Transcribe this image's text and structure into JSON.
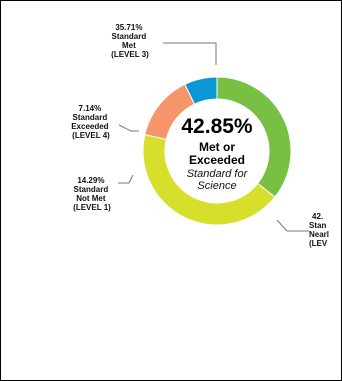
{
  "chart_data": {
    "type": "pie",
    "center": {
      "percent": "42.85%",
      "line1": "Met or",
      "line2": "Exceeded",
      "line3": "Standard for",
      "line4": "Science"
    },
    "slices": [
      {
        "value": 35.71,
        "color": "#77c043",
        "labels": [
          "35.71%",
          "Standard",
          "Met",
          "(LEVEL 3)"
        ]
      },
      {
        "value": 42.86,
        "color": "#d6e02a",
        "labels": [
          "42.",
          "Stan",
          "Nearl",
          "(LEV"
        ]
      },
      {
        "value": 14.29,
        "color": "#f7956a",
        "labels": [
          "14.29%",
          "Standard",
          "Not Met",
          "(LEVEL 1)"
        ]
      },
      {
        "value": 7.14,
        "color": "#0c96d6",
        "labels": [
          "7.14%",
          "Standard",
          "Exceeded",
          "(LEVEL 4)"
        ]
      }
    ]
  }
}
